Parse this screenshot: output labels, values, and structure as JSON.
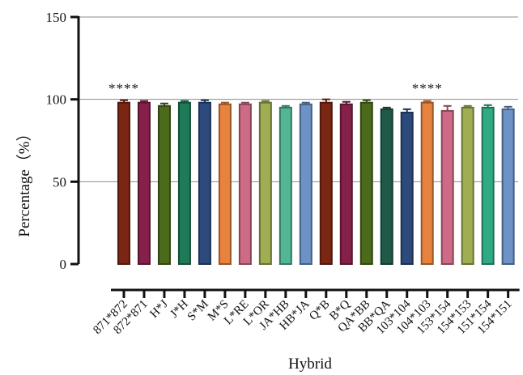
{
  "chart_data": {
    "type": "bar",
    "title": "",
    "xlabel": "Hybrid",
    "ylabel": "Percentage（%）",
    "ylim": [
      0,
      150
    ],
    "yticks": [
      0,
      50,
      100,
      150
    ],
    "grid": "horizontal",
    "categories": [
      "871*872",
      "872*871",
      "H*J",
      "J*H",
      "S*M",
      "M*S",
      "L*RE",
      "L*OR",
      "JA*HB",
      "HB*JA",
      "Q*B",
      "B*Q",
      "QA*BB",
      "BB*QA",
      "103*104",
      "104*103",
      "153*154",
      "154*153",
      "151*154",
      "154*151"
    ],
    "values": [
      98,
      98,
      96,
      98,
      98,
      97,
      97,
      98,
      95,
      97,
      98,
      97,
      98,
      94,
      92,
      98,
      93,
      95,
      95,
      94
    ],
    "errors": [
      1.5,
      1,
      1.5,
      1,
      1.5,
      1,
      1,
      1,
      1,
      1,
      2,
      1.5,
      1.5,
      1,
      2,
      1,
      3,
      1,
      1.5,
      1.5
    ],
    "bar_colors": [
      "#7a2612",
      "#84204a",
      "#4c6a1c",
      "#1f7a58",
      "#2c4a7c",
      "#e8823f",
      "#cd6b86",
      "#a0ad52",
      "#52b694",
      "#6c92c6",
      "#7a2612",
      "#84204a",
      "#4c6a1c",
      "#1f5a48",
      "#2c4a7c",
      "#e8823f",
      "#cd6b86",
      "#a0ad52",
      "#2faa84",
      "#6c92c6"
    ],
    "annotations": [
      {
        "text": "****",
        "x_index": 0,
        "y": 107
      },
      {
        "text": "****",
        "x_index": 15,
        "y": 107
      }
    ]
  }
}
